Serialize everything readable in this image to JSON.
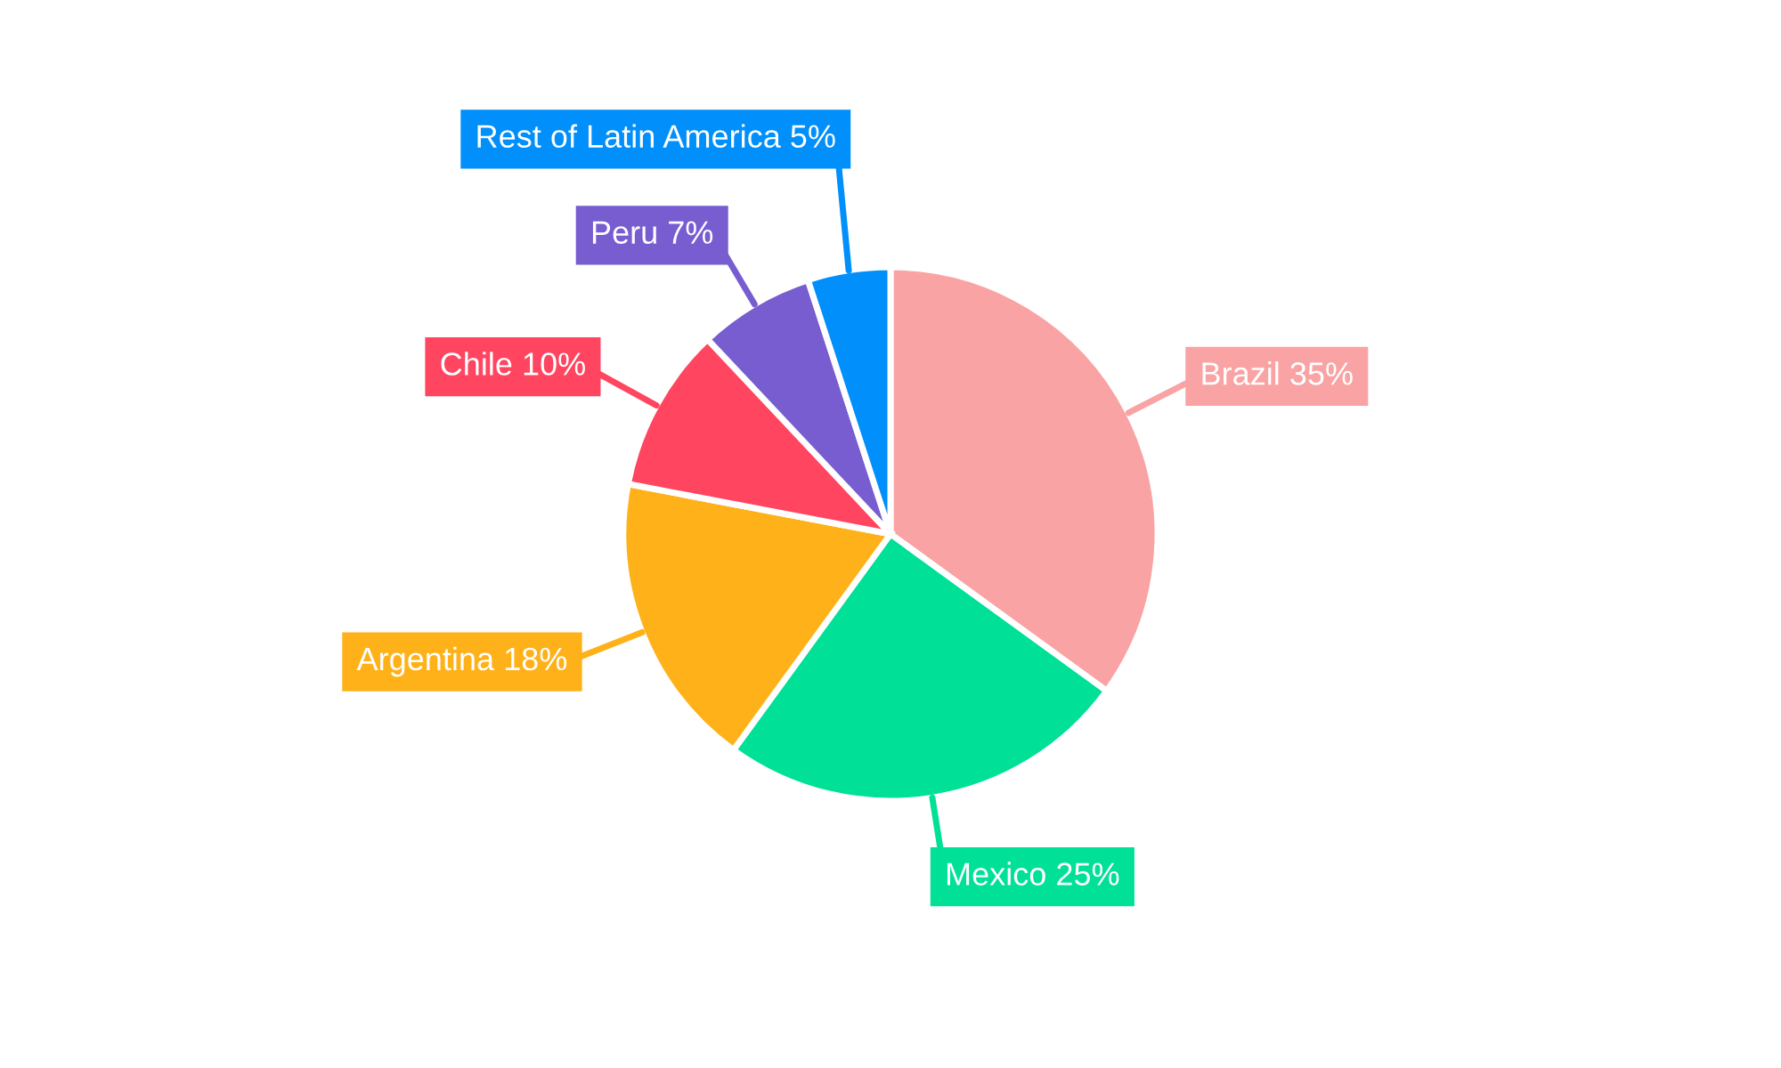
{
  "chart_data": {
    "type": "pie",
    "categories": [
      "Brazil",
      "Mexico",
      "Argentina",
      "Chile",
      "Peru",
      "Rest of Latin America"
    ],
    "values": [
      35,
      25,
      18,
      10,
      7,
      5
    ],
    "value_labels": [
      "35%",
      "25%",
      "18%",
      "10%",
      "7%",
      "5%"
    ],
    "colors": [
      "#f9a3a4",
      "#00e096",
      "#ffb11a",
      "#ff4560",
      "#775dd0",
      "#008ffb"
    ],
    "legend": false
  }
}
